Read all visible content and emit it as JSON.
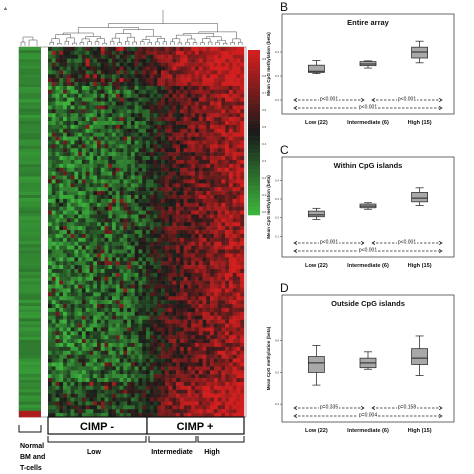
{
  "heatmap": {
    "panel_label": "A",
    "scale_ticks": [
      "0.9",
      "0.8",
      "0.7",
      "0.6",
      "0.5",
      "0.4",
      "0.3",
      "0.2",
      "0.1",
      "0.0"
    ],
    "cimp_minus_label": "CIMP -",
    "cimp_plus_label": "CIMP +",
    "group_labels": {
      "normal": [
        "Normal",
        "BM and",
        "T-cells"
      ],
      "low": "Low",
      "intermediate": "Intermediate",
      "high": "High"
    },
    "colors": {
      "low": "#3cb43c",
      "mid": "#1a1a1a",
      "high": "#d21e1e"
    }
  },
  "chart_data": [
    {
      "type": "box",
      "panel_label": "B",
      "title": "Entire array",
      "ylabel": "Mean CpG methylation (beta)",
      "categories": [
        "Low (22)",
        "Intermediate (6)",
        "High (15)"
      ],
      "ylim": [
        0.15,
        0.5
      ],
      "yticks": [
        0.2,
        0.3,
        0.4
      ],
      "boxes": [
        {
          "min": 0.31,
          "q1": 0.315,
          "median": 0.32,
          "q3": 0.345,
          "max": 0.365
        },
        {
          "min": 0.333,
          "q1": 0.343,
          "median": 0.35,
          "q3": 0.36,
          "max": 0.363
        },
        {
          "min": 0.355,
          "q1": 0.375,
          "median": 0.4,
          "q3": 0.42,
          "max": 0.445
        }
      ],
      "pvalue_labels": [
        "p<0.001",
        "p<0.001",
        "p<0.001"
      ]
    },
    {
      "type": "box",
      "panel_label": "C",
      "title": "Within CpG islands",
      "ylabel": "Mean CpG methylation (beta)",
      "categories": [
        "Low (22)",
        "Intermediate (6)",
        "High (15)"
      ],
      "ylim": [
        0.0,
        0.45
      ],
      "yticks": [
        0.1,
        0.2,
        0.3,
        0.4
      ],
      "boxes": [
        {
          "min": 0.19,
          "q1": 0.205,
          "median": 0.215,
          "q3": 0.235,
          "max": 0.25
        },
        {
          "min": 0.245,
          "q1": 0.253,
          "median": 0.262,
          "q3": 0.273,
          "max": 0.28
        },
        {
          "min": 0.265,
          "q1": 0.285,
          "median": 0.305,
          "q3": 0.335,
          "max": 0.36
        }
      ],
      "pvalue_labels": [
        "p<0.001",
        "p<0.001",
        "p<0.001"
      ]
    },
    {
      "type": "box",
      "panel_label": "D",
      "title": "Outside CpG islands",
      "ylabel": "Mean CpG methylation (beta)",
      "categories": [
        "Low (22)",
        "Intermediate (6)",
        "High (15)"
      ],
      "ylim": [
        0.35,
        0.7
      ],
      "yticks": [
        0.4,
        0.5,
        0.6
      ],
      "boxes": [
        {
          "min": 0.46,
          "q1": 0.5,
          "median": 0.53,
          "q3": 0.55,
          "max": 0.585
        },
        {
          "min": 0.51,
          "q1": 0.515,
          "median": 0.53,
          "q3": 0.545,
          "max": 0.565
        },
        {
          "min": 0.49,
          "q1": 0.525,
          "median": 0.545,
          "q3": 0.575,
          "max": 0.615
        }
      ],
      "pvalue_labels": [
        "p=0.335",
        "p=0.158",
        "p=0.004"
      ]
    }
  ]
}
